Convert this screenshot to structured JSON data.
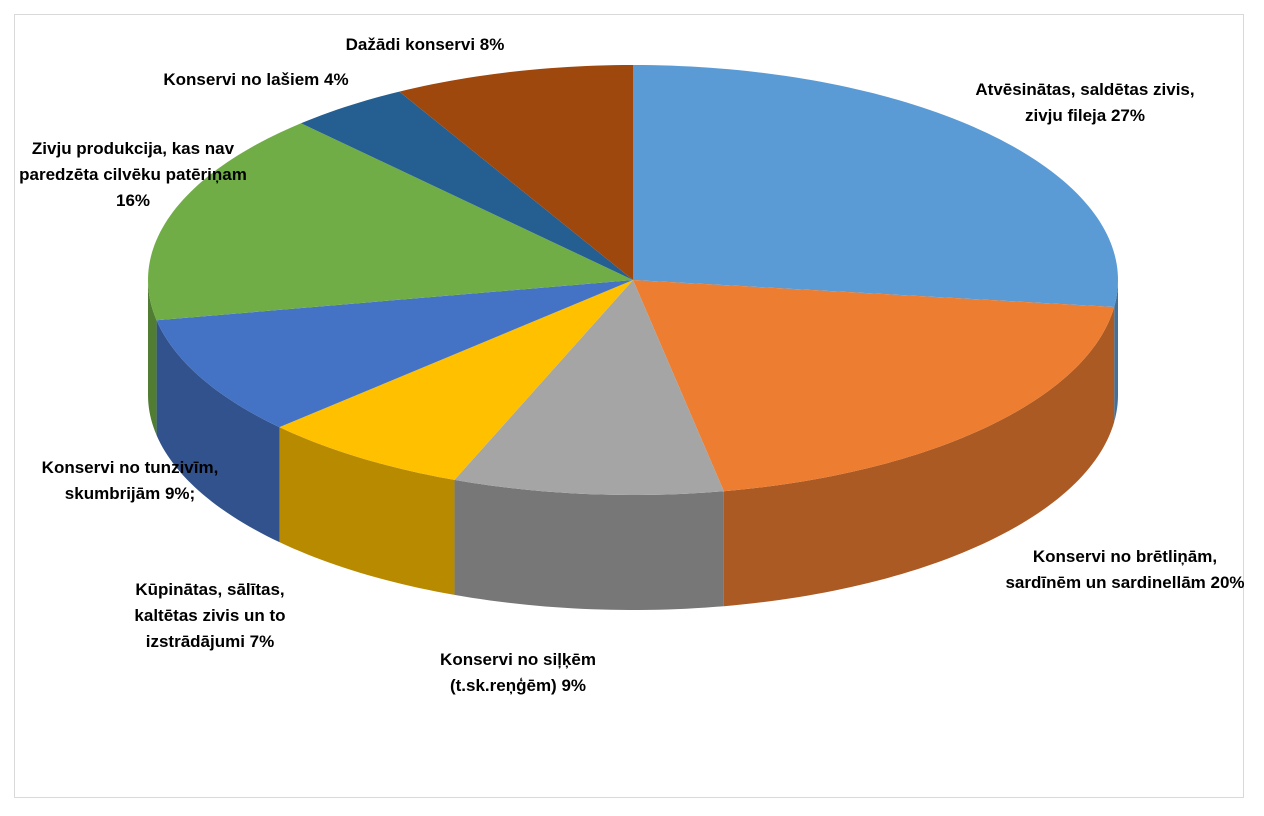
{
  "chart_data": {
    "type": "pie3d",
    "categories": [
      "Atvēsinātas, saldētas zivis, zivju fileja",
      "Konservi no brētliņām, sardīnēm un sardinellām",
      "Konservi no siļķēm (t.sk.reņģēm)",
      "Kūpinātas, sālītas, kaltētas zivis un to izstrādājumi",
      "Konservi no tunzivīm, skumbrijām",
      "Zivju produkcija, kas nav paredzēta cilvēku patēriņam",
      "Konservi no lašiem",
      "Dažādi konservi"
    ],
    "values": [
      27,
      20,
      9,
      7,
      9,
      16,
      4,
      8
    ],
    "value_labels": [
      "27%",
      "20%",
      "9%",
      "7%",
      "9%;",
      "16%",
      "4%",
      "8%"
    ],
    "colors": [
      "#5b9bd5",
      "#ed7d31",
      "#a5a5a5",
      "#ffc000",
      "#4472c4",
      "#70ad47",
      "#255e91",
      "#9e480e"
    ]
  }
}
